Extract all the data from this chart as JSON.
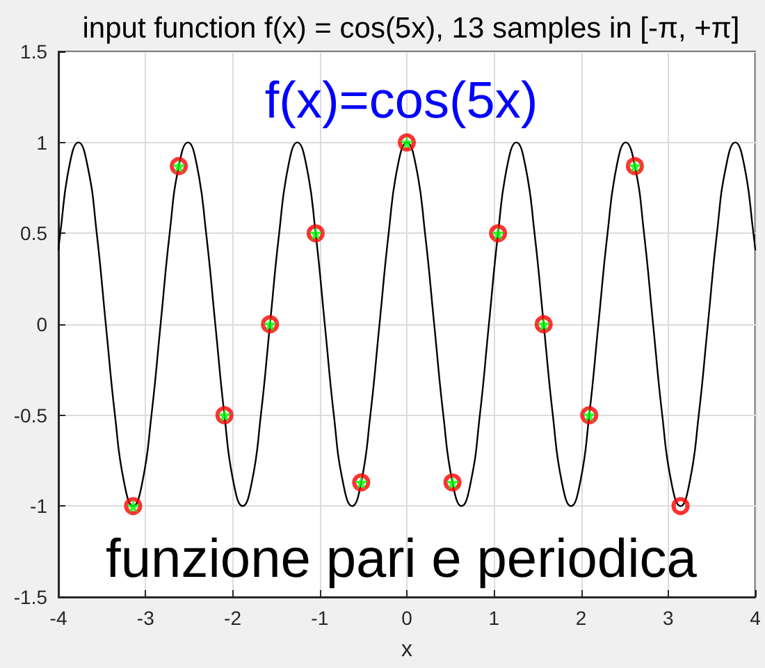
{
  "chart_data": {
    "type": "line",
    "title": "input function f(x) = cos(5x), 13 samples in [-π, +π]",
    "xlabel": "x",
    "annotations": [
      "f(x)=cos(5x)",
      "funzione pari e periodica"
    ],
    "series": [
      {
        "color": "#000000",
        "marker": "none",
        "x": [
          -4,
          -3.979,
          -3.875,
          -3.77,
          -3.665,
          -3.56,
          -3.456,
          -3.351,
          -3.246,
          -3.142,
          -3.037,
          -2.932,
          -2.827,
          -2.723,
          -2.618,
          -2.513,
          -2.409,
          -2.304,
          -2.199,
          -2.094,
          -1.99,
          -1.885,
          -1.78,
          -1.676,
          -1.571,
          -1.466,
          -1.361,
          -1.257,
          -1.152,
          -1.047,
          -0.942,
          -0.838,
          -0.733,
          -0.628,
          -0.524,
          -0.419,
          -0.314,
          -0.209,
          -0.105,
          0,
          0.105,
          0.209,
          0.314,
          0.419,
          0.524,
          0.628,
          0.733,
          0.838,
          0.942,
          1.047,
          1.152,
          1.257,
          1.361,
          1.466,
          1.571,
          1.676,
          1.78,
          1.885,
          1.99,
          2.094,
          2.199,
          2.304,
          2.409,
          2.513,
          2.618,
          2.723,
          2.827,
          2.932,
          3.037,
          3.142,
          3.246,
          3.351,
          3.456,
          3.56,
          3.665,
          3.77,
          3.875,
          3.979,
          4
        ],
        "values": [
          0.41,
          0.5,
          0.87,
          1,
          0.87,
          0.5,
          0,
          -0.5,
          -0.87,
          -1,
          -0.87,
          -0.5,
          0,
          0.5,
          0.87,
          1,
          0.87,
          0.5,
          0,
          -0.5,
          -0.87,
          -1,
          -0.87,
          -0.5,
          0,
          0.5,
          0.87,
          1,
          0.87,
          0.5,
          0,
          -0.5,
          -0.87,
          -1,
          -0.87,
          -0.5,
          0,
          0.5,
          0.87,
          1,
          0.87,
          0.5,
          0,
          -0.5,
          -0.87,
          -1,
          -0.87,
          -0.5,
          0,
          0.5,
          0.87,
          1,
          0.87,
          0.5,
          0,
          -0.5,
          -0.87,
          -1,
          -0.87,
          -0.5,
          0,
          0.5,
          0.87,
          1,
          0.87,
          0.5,
          0,
          -0.5,
          -0.87,
          -1,
          -0.87,
          -0.5,
          0,
          0.5,
          0.87,
          1,
          0.87,
          0.5,
          0.41
        ]
      },
      {
        "type": "scatter",
        "color": "#ff0000",
        "marker": "circle",
        "x": [
          -3.142,
          -2.618,
          -2.094,
          -1.571,
          -1.047,
          -0.524,
          0,
          0.524,
          1.047,
          1.571,
          2.094,
          2.618,
          3.142
        ],
        "values": [
          -1,
          0.87,
          -0.5,
          0,
          0.5,
          -0.87,
          1,
          -0.87,
          0.5,
          0,
          -0.5,
          0.87,
          -1
        ]
      },
      {
        "type": "scatter",
        "color": "#00ff00",
        "marker": "star",
        "x": [
          -3.142,
          -2.618,
          -2.094,
          -1.571,
          -1.047,
          -0.524,
          0,
          0.524,
          1.047,
          1.571,
          2.094,
          2.618
        ],
        "values": [
          -1,
          0.87,
          -0.5,
          0,
          0.5,
          -0.87,
          1,
          -0.87,
          0.5,
          0,
          -0.5,
          0.87
        ]
      }
    ],
    "xlim": [
      -4,
      4
    ],
    "xticks": [
      -4,
      -3,
      -2,
      -1,
      0,
      1,
      2,
      3,
      4
    ],
    "ylim": [
      -1.5,
      1.5
    ],
    "yticks": [
      -1.5,
      -1,
      -0.5,
      0,
      0.5,
      1,
      1.5
    ],
    "grid": true
  }
}
